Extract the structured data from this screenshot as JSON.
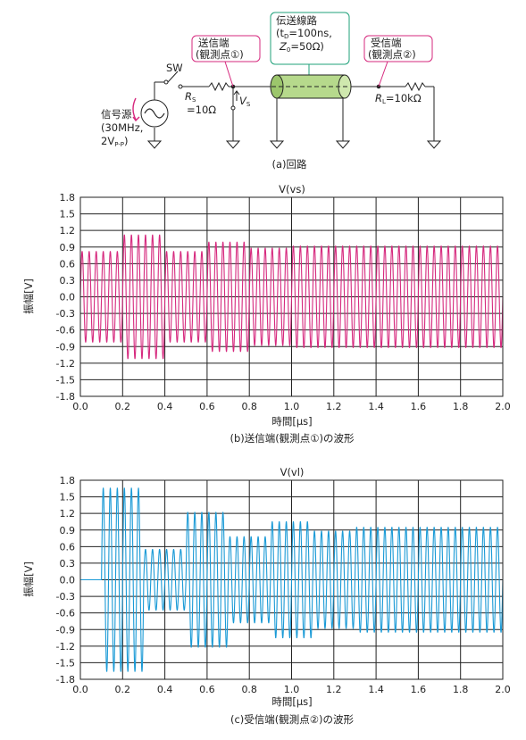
{
  "circuit": {
    "sw_label": "SW",
    "source": {
      "label": "信号源",
      "spec": "(30MHz,",
      "amp": "2V",
      "amp_sub": "P-P",
      "amp_close": ")"
    },
    "rs": {
      "name": "R",
      "sub": "S",
      "value": "=10Ω"
    },
    "vs": {
      "name": "V",
      "sub": "S"
    },
    "send_box": {
      "line1": "送信端",
      "line2": "(観測点①)"
    },
    "tline_box": {
      "line1": "伝送線路",
      "line2_open": "(t",
      "line2_sub": "D",
      "line2_rest": "=100ns,",
      "line3_name": "Z",
      "line3_sub": "0",
      "line3_rest": "=50Ω)"
    },
    "recv_box": {
      "line1": "受信端",
      "line2": "(観測点②)"
    },
    "rl": {
      "name": "R",
      "sub": "L",
      "value": "=10kΩ"
    },
    "caption": "(a)回路"
  },
  "chart_data": [
    {
      "type": "line",
      "title": "V(vs)",
      "xlabel": "時間[μs]",
      "ylabel": "振幅[V]",
      "caption": "(b)送信端(観測点①)の波形",
      "xlim": [
        0.0,
        2.0
      ],
      "ylim": [
        -1.8,
        1.8
      ],
      "xticks": [
        "0.0",
        "0.2",
        "0.4",
        "0.6",
        "0.8",
        "1.0",
        "1.2",
        "1.4",
        "1.6",
        "1.8",
        "2.0"
      ],
      "yticks": [
        "1.8",
        "1.5",
        "1.2",
        "0.9",
        "0.6",
        "0.3",
        "0.0",
        "-0.3",
        "-0.6",
        "-0.9",
        "-1.2",
        "-1.5",
        "-1.8"
      ],
      "grid": true,
      "color": "#d6297e",
      "frequency_mhz": 30,
      "series": [
        {
          "segments": [
            {
              "t_start": 0.0,
              "t_end": 0.2,
              "amplitude": 0.82
            },
            {
              "t_start": 0.2,
              "t_end": 0.4,
              "amplitude": 1.12
            },
            {
              "t_start": 0.4,
              "t_end": 0.6,
              "amplitude": 0.82
            },
            {
              "t_start": 0.6,
              "t_end": 0.8,
              "amplitude": 0.99
            },
            {
              "t_start": 0.8,
              "t_end": 1.0,
              "amplitude": 0.88
            },
            {
              "t_start": 1.0,
              "t_end": 2.0,
              "amplitude": 0.92
            }
          ]
        }
      ]
    },
    {
      "type": "line",
      "title": "V(vl)",
      "xlabel": "時間[μs]",
      "ylabel": "振幅[V]",
      "caption": "(c)受信端(観測点②)の波形",
      "xlim": [
        0.0,
        2.0
      ],
      "ylim": [
        -1.8,
        1.8
      ],
      "xticks": [
        "0.0",
        "0.2",
        "0.4",
        "0.6",
        "0.8",
        "1.0",
        "1.2",
        "1.4",
        "1.6",
        "1.8",
        "2.0"
      ],
      "yticks": [
        "1.8",
        "1.5",
        "1.2",
        "0.9",
        "0.6",
        "0.3",
        "0.0",
        "-0.3",
        "-0.6",
        "-0.9",
        "-1.2",
        "-1.5",
        "-1.8"
      ],
      "grid": true,
      "color": "#1a9ad6",
      "frequency_mhz": 30,
      "series": [
        {
          "segments": [
            {
              "t_start": 0.0,
              "t_end": 0.1,
              "amplitude": 0.0
            },
            {
              "t_start": 0.1,
              "t_end": 0.3,
              "amplitude": 1.66
            },
            {
              "t_start": 0.3,
              "t_end": 0.5,
              "amplitude": 0.55
            },
            {
              "t_start": 0.5,
              "t_end": 0.7,
              "amplitude": 1.22
            },
            {
              "t_start": 0.7,
              "t_end": 0.9,
              "amplitude": 0.78
            },
            {
              "t_start": 0.9,
              "t_end": 1.1,
              "amplitude": 1.05
            },
            {
              "t_start": 1.1,
              "t_end": 1.3,
              "amplitude": 0.88
            },
            {
              "t_start": 1.3,
              "t_end": 2.0,
              "amplitude": 0.95
            }
          ]
        }
      ]
    }
  ]
}
